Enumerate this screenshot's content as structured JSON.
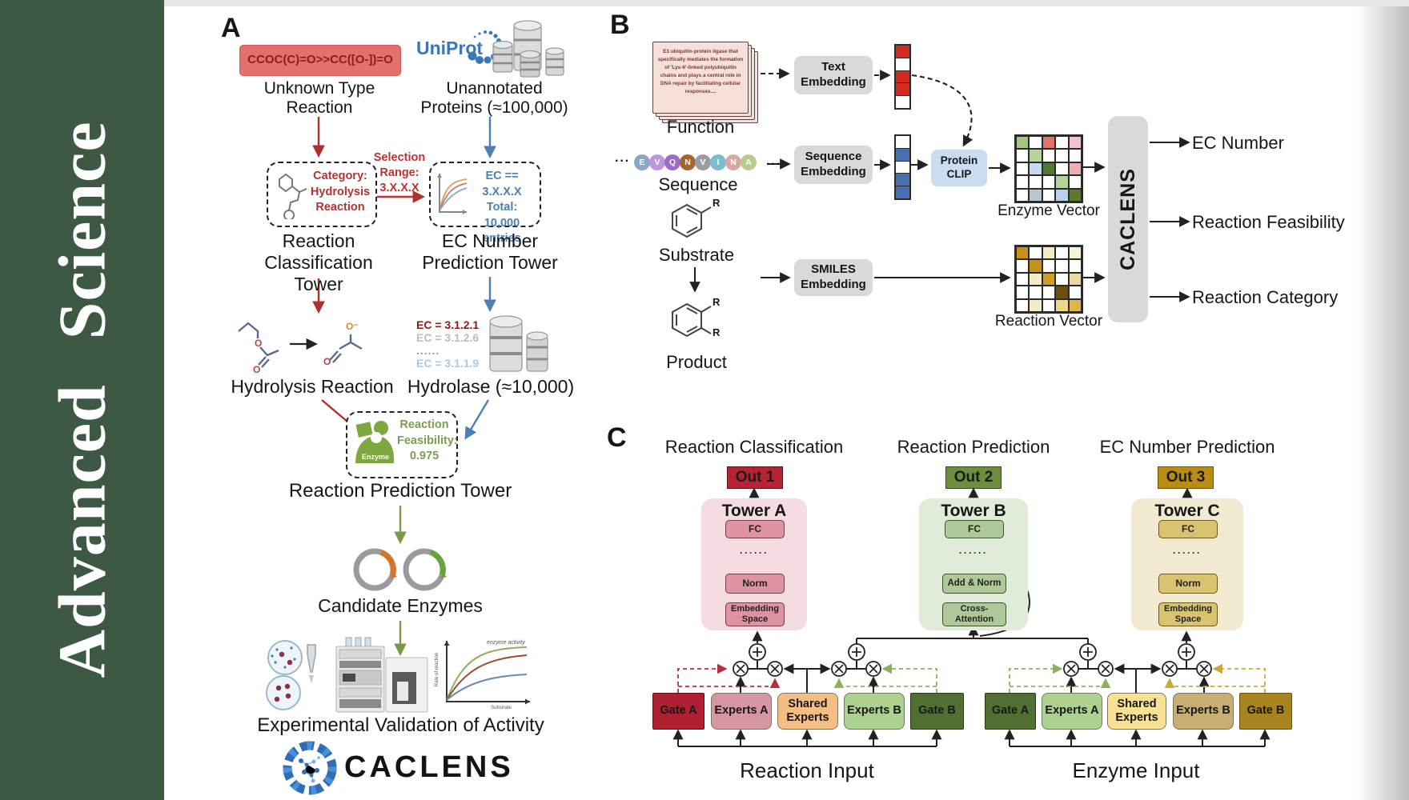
{
  "sidebar": {
    "title": "Advanced  Science"
  },
  "colors": {
    "sidebar_green": "#3d5943",
    "uniprot_blue": "#3878b8",
    "arrow_red": "#b22f2f",
    "arrow_blue": "#4b80b5",
    "arrow_green": "#7a9a4a",
    "smiles_box_red": "#e4706e",
    "out1_red": "#b62433",
    "out2_green": "#6b8f3e",
    "out3_gold": "#b98c14",
    "protein_clip_blue": "#c9dcf2",
    "embedding_gray": "#d9d9d9"
  },
  "panel_a": {
    "label": "A",
    "smiles": "CCOC(C)=O>>CC([O-])=O",
    "unknown_type_line1": "Unknown Type",
    "unknown_type_line2": "Reaction",
    "uniprot": "UniProt",
    "unannotated_line1": "Unannotated",
    "unannotated_line2": "Proteins (≈100,000)",
    "category_line1": "Category:",
    "category_line2": "Hydrolysis",
    "category_line3": "Reaction",
    "selection_line1": "Selection",
    "selection_line2": "Range:",
    "selection_line3": "3.X.X.X",
    "ec_filter_line1": "EC == 3.X.X.X",
    "ec_filter_line2": "Total: 10,000",
    "ec_filter_line3": "entries",
    "tower1_line1": "Reaction",
    "tower1_line2": "Classification Tower",
    "tower2_line1": "EC Number",
    "tower2_line2": "Prediction Tower",
    "ec_list": [
      "EC = 3.1.2.1",
      "EC = 3.1.2.6",
      "......",
      "EC = 3.1.1.9"
    ],
    "atom_o": "O",
    "atom_o_minus": "O⁻",
    "hydrolysis": "Hydrolysis Reaction",
    "hydrolase": "Hydrolase (≈10,000)",
    "enzyme_badge": "Enzyme",
    "feasibility_line1": "Reaction",
    "feasibility_line2": "Feasibility:",
    "feasibility_line3": "0.975",
    "tower3": "Reaction Prediction Tower",
    "candidate": "Candidate Enzymes",
    "validation": "Experimental Validation of Activity",
    "plot": {
      "ylabel": "Rate of reaction",
      "xlabel": "Substrate",
      "annotation": "enzyme activity"
    },
    "caclens": "CACLENS"
  },
  "panel_b": {
    "label": "B",
    "function_card": "E3 ubiquitin-protein ligase that specifically mediates the formation of 'Lys-6'-linked polyubiquitin chains and plays a central role in DNA repair by facilitating cellular responses....",
    "function": "Function",
    "ellipsis": "···",
    "residues": [
      {
        "ch": "E",
        "color": "#8aa6c3"
      },
      {
        "ch": "V",
        "color": "#bd96dd"
      },
      {
        "ch": "Q",
        "color": "#9c6cc5"
      },
      {
        "ch": "N",
        "color": "#a9632e"
      },
      {
        "ch": "V",
        "color": "#9b9ba3"
      },
      {
        "ch": "I",
        "color": "#7cbcd1"
      },
      {
        "ch": "N",
        "color": "#d9a9a0"
      },
      {
        "ch": "A",
        "color": "#b6cd8f"
      }
    ],
    "sequence": "Sequence",
    "substrate": "Substrate",
    "product": "Product",
    "r": "R",
    "text_embedding_line1": "Text",
    "text_embedding_line2": "Embedding",
    "sequence_embedding_line1": "Sequence",
    "sequence_embedding_line2": "Embedding",
    "smiles_embedding_line1": "SMILES",
    "smiles_embedding_line2": "Embedding",
    "protein_clip_line1": "Protein",
    "protein_clip_line2": "CLIP",
    "text_vector": [
      "#d42a20",
      "#ffffff",
      "#d42a20",
      "#d42a20",
      "#ffffff"
    ],
    "seq_vector": [
      "#ffffff",
      "#4a6fae",
      "#ffffff",
      "#4a6fae",
      "#4a6fae"
    ],
    "enzyme_grid": [
      [
        "#a3c585",
        "#ffffff",
        "#e0736b",
        "#ffffff",
        "#f2c3cb"
      ],
      [
        "#ffffff",
        "#b5d49b",
        "#ffffff",
        "#ffffff",
        "#ffffff"
      ],
      [
        "#ffffff",
        "#c6d9ee",
        "#4e7a33",
        "#ffffff",
        "#eeafb3"
      ],
      [
        "#ffffff",
        "#ffffff",
        "#ffffff",
        "#b5d49b",
        "#ffffff"
      ],
      [
        "#ffffff",
        "#b9c5d5",
        "#ffffff",
        "#b9d1ea",
        "#5a7a2e"
      ]
    ],
    "reaction_grid": [
      [
        "#c3921d",
        "#ffffff",
        "#f4ecc4",
        "#ffffff",
        "#f8f2d9"
      ],
      [
        "#ffffff",
        "#c3921d",
        "#ffffff",
        "#ffffff",
        "#ffffff"
      ],
      [
        "#ffffff",
        "#f4ecc4",
        "#cb9f28",
        "#ffffff",
        "#ead9a5"
      ],
      [
        "#ffffff",
        "#ffffff",
        "#ffffff",
        "#6b4e10",
        "#ffffff"
      ],
      [
        "#ffffff",
        "#f4ecc4",
        "#ffffff",
        "#efd88a",
        "#dfb64a"
      ]
    ],
    "enzyme_vector_label": "Enzyme Vector",
    "reaction_vector_label": "Reaction Vector",
    "caclens": "CACLENS",
    "outputs": [
      "EC Number",
      "Reaction Feasibility",
      "Reaction Category"
    ]
  },
  "panel_c": {
    "label": "C",
    "headings": [
      "Reaction Classification",
      "Reaction Prediction",
      "EC Number Prediction"
    ],
    "outs": [
      "Out 1",
      "Out 2",
      "Out 3"
    ],
    "towers": [
      {
        "name": "Tower A",
        "fc": "FC",
        "dots": "······",
        "mid": "Norm",
        "bottom_line1": "Embedding",
        "bottom_line2": "Space"
      },
      {
        "name": "Tower B",
        "fc": "FC",
        "dots": "······",
        "mid": "Add & Norm",
        "bottom_line1": "Cross-",
        "bottom_line2": "Attention"
      },
      {
        "name": "Tower C",
        "fc": "FC",
        "dots": "······",
        "mid": "Norm",
        "bottom_line1": "Embedding",
        "bottom_line2": "Space"
      }
    ],
    "reaction_moe": [
      "Gate A",
      "Experts A",
      "Shared Experts",
      "Experts B",
      "Gate B"
    ],
    "enzyme_moe": [
      "Gate A",
      "Experts A",
      "Shared Experts",
      "Experts B",
      "Gate B"
    ],
    "reaction_input": "Reaction Input",
    "enzyme_input": "Enzyme Input"
  }
}
